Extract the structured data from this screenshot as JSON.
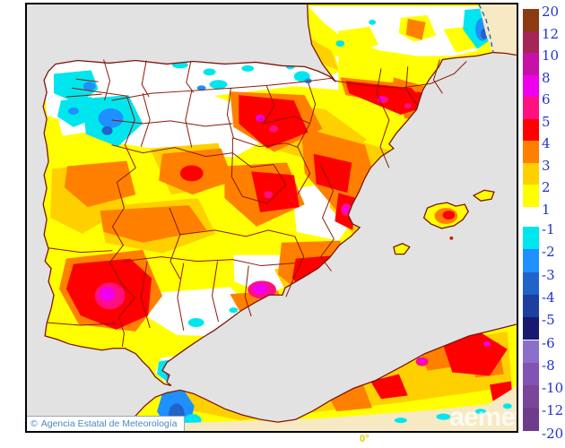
{
  "attribution": {
    "symbol": "©",
    "text": "Agencia Estatal de Meteorología"
  },
  "watermark": {
    "text": "aemet"
  },
  "axes": {
    "meridian_label": "0°"
  },
  "legend": {
    "label_color": "#2233CC",
    "positive_edge_labels": [
      "20",
      "12",
      "10",
      "8",
      "6",
      "5",
      "4",
      "3",
      "2",
      "1"
    ],
    "positive_cell_colors": [
      "#8C3A10",
      "#A62557",
      "#C611A6",
      "#EE00EE",
      "#FF1080",
      "#FF0000",
      "#FF8000",
      "#FFD000",
      "#FFFF00"
    ],
    "negative_edge_labels": [
      "-1",
      "-2",
      "-3",
      "-4",
      "-5",
      "-6",
      "-8",
      "-10",
      "-12",
      "-20"
    ],
    "negative_cell_colors": [
      "#00E6EE",
      "#1E90FF",
      "#2163C8",
      "#1C3FA0",
      "#191970",
      "#8A70CC",
      "#8254B2",
      "#7A4699",
      "#6E3C8C"
    ]
  },
  "map": {
    "sea_color": "#E2E2E2",
    "no_data_land_color": "#F6E9C4",
    "boundary_color": "#8B1808",
    "coastline_color": "#7E1408",
    "dashed_border_color": "#3366CC",
    "base_anomaly_color": "#FFFF00"
  }
}
